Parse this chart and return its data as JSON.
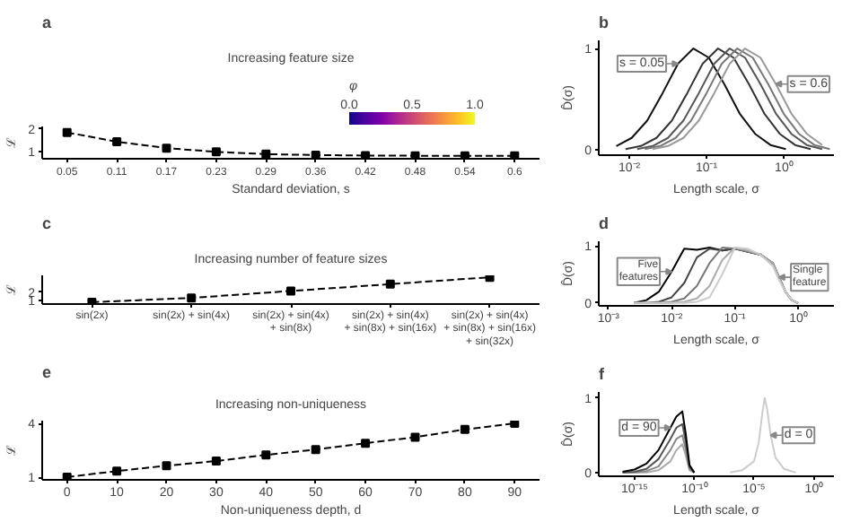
{
  "chart_data": [
    {
      "type": "line",
      "title": "a",
      "annotations": [
        "Increasing feature size"
      ],
      "clabel": "φ",
      "clim": [
        0,
        1
      ],
      "cticks": [
        {
          "value": 0,
          "label": "0.0"
        },
        {
          "value": 0.5,
          "label": "0.5"
        },
        {
          "value": 1,
          "label": "1.0"
        }
      ],
      "categories": [
        "0.05",
        "0.11",
        "0.17",
        "0.23",
        "0.29",
        "0.36",
        "0.42",
        "0.48",
        "0.54",
        "0.6"
      ],
      "xlabel": "Standard deviation, s",
      "ylabel": "ℒ",
      "ylim": [
        0.7,
        2.1
      ],
      "yticks": [
        1,
        2
      ],
      "marker": "square",
      "line_style": "dashed",
      "grid": false,
      "series": [
        {
          "color": "#000000",
          "values": [
            1.84,
            1.44,
            1.16,
            1.0,
            0.9,
            0.86,
            0.84,
            0.83,
            0.83,
            0.83
          ]
        }
      ]
    },
    {
      "type": "line",
      "title": "b",
      "log": "x",
      "xlabel": "Length scale, σ",
      "ylabel": "D̂(σ)",
      "xlim": [
        0.004,
        4.5
      ],
      "xticks": [
        {
          "value": 0.01,
          "label": "10⁻²"
        },
        {
          "value": 0.1,
          "label": "10⁻¹"
        },
        {
          "value": 1,
          "label": "10⁰"
        }
      ],
      "ylim": [
        -0.05,
        1.08
      ],
      "yticks": [
        0,
        1
      ],
      "grid": false,
      "line_style": "solid",
      "annotations": [
        {
          "text": "s = 0.05",
          "x": 0.0427,
          "y": 0.85
        },
        {
          "text": "s = 0.6",
          "x": 0.794,
          "y": 0.65
        }
      ],
      "series": [
        {
          "color": "#111111",
          "x": [
            0.00676,
            0.0107,
            0.017,
            0.0269,
            0.0427,
            0.0676,
            0.107,
            0.17,
            0.269,
            0.427,
            0.676,
            1.07
          ],
          "values": [
            0.04,
            0.12,
            0.29,
            0.56,
            0.85,
            1.0,
            0.91,
            0.65,
            0.36,
            0.16,
            0.05,
            0.01
          ]
        },
        {
          "color": "#333333",
          "x": [
            0.00891,
            0.0141,
            0.0224,
            0.0355,
            0.0562,
            0.0891,
            0.141,
            0.224,
            0.355,
            0.562,
            0.891,
            1.41,
            2.24
          ],
          "values": [
            0.01,
            0.04,
            0.12,
            0.29,
            0.56,
            0.85,
            1.0,
            0.91,
            0.65,
            0.36,
            0.16,
            0.05,
            0.01
          ]
        },
        {
          "color": "#555555",
          "x": [
            0.0126,
            0.02,
            0.0316,
            0.0501,
            0.0794,
            0.126,
            0.2,
            0.316,
            0.501,
            0.794,
            1.26,
            2.0,
            3.16
          ],
          "values": [
            0.01,
            0.04,
            0.12,
            0.29,
            0.56,
            0.85,
            1.0,
            0.91,
            0.65,
            0.36,
            0.16,
            0.05,
            0.01
          ]
        },
        {
          "color": "#777777",
          "x": [
            0.0158,
            0.0251,
            0.0398,
            0.0631,
            0.1,
            0.158,
            0.251,
            0.398,
            0.631,
            1.0,
            1.58,
            2.51,
            3.98
          ],
          "values": [
            0.01,
            0.04,
            0.12,
            0.29,
            0.56,
            0.85,
            1.0,
            0.91,
            0.65,
            0.36,
            0.16,
            0.05,
            0.01
          ]
        },
        {
          "color": "#999999",
          "x": [
            0.02,
            0.0316,
            0.0501,
            0.0794,
            0.126,
            0.2,
            0.316,
            0.501,
            0.794,
            1.26,
            2.0,
            3.16
          ],
          "values": [
            0.01,
            0.04,
            0.12,
            0.29,
            0.56,
            0.85,
            1.0,
            0.91,
            0.65,
            0.36,
            0.16,
            0.05
          ]
        }
      ]
    },
    {
      "type": "line",
      "title": "c",
      "annotations": [
        "Increasing number of feature sizes"
      ],
      "categories": [
        "sin(2x)",
        "sin(2x) + sin(4x)",
        "sin(2x) + sin(4x)\n+ sin(8x)",
        "sin(2x) + sin(4x)\n+ sin(8x) + sin(16x)",
        "sin(2x) + sin(4x)\n+ sin(8x) + sin(16x)\n+ sin(32x)"
      ],
      "ylabel": "ℒ",
      "ylim": [
        0.5,
        4.1
      ],
      "yticks": [
        1,
        2
      ],
      "marker": "square",
      "line_style": "dashed",
      "grid": false,
      "series": [
        {
          "color": "#000000",
          "values": [
            0.73,
            1.27,
            2.14,
            3.0,
            3.86
          ]
        }
      ]
    },
    {
      "type": "line",
      "title": "d",
      "log": "x",
      "xlabel": "Length scale, σ",
      "ylabel": "D̂(σ)",
      "xlim": [
        0.0007,
        3.7
      ],
      "xticks": [
        {
          "value": 0.001,
          "label": "10⁻³"
        },
        {
          "value": 0.01,
          "label": "10⁻²"
        },
        {
          "value": 0.1,
          "label": "10⁻¹"
        },
        {
          "value": 1,
          "label": "10⁰"
        }
      ],
      "ylim": [
        -0.05,
        1.08
      ],
      "yticks": [
        0,
        1
      ],
      "grid": false,
      "line_style": "solid",
      "annotations": [
        {
          "text": "Five features",
          "x": 0.01,
          "y": 0.55
        },
        {
          "text": "Single feature",
          "x": 0.501,
          "y": 0.45
        }
      ],
      "x": [
        0.00251,
        0.00398,
        0.0063,
        0.01,
        0.0158,
        0.0251,
        0.0398,
        0.063,
        0.1,
        0.158,
        0.251,
        0.398,
        0.501,
        0.631,
        0.794,
        1.0
      ],
      "series": [
        {
          "color": "#000000",
          "values": [
            0,
            0.05,
            0.2,
            0.55,
            0.95,
            0.93,
            0.97,
            0.92,
            0.95,
            0.9,
            0.85,
            0.7,
            0.45,
            0.2,
            0.05,
            0
          ]
        },
        {
          "color": "#444444",
          "values": [
            0,
            0,
            0.02,
            0.1,
            0.35,
            0.8,
            0.95,
            0.92,
            0.96,
            0.9,
            0.85,
            0.7,
            0.45,
            0.2,
            0.05,
            0
          ]
        },
        {
          "color": "#777777",
          "values": [
            0,
            0,
            0,
            0.02,
            0.08,
            0.3,
            0.7,
            0.97,
            0.95,
            0.9,
            0.85,
            0.7,
            0.45,
            0.2,
            0.05,
            0
          ]
        },
        {
          "color": "#aaaaaa",
          "values": [
            0,
            0,
            0,
            0,
            0.02,
            0.08,
            0.3,
            0.75,
            0.97,
            0.92,
            0.85,
            0.7,
            0.45,
            0.2,
            0.05,
            0
          ]
        },
        {
          "color": "#cccccc",
          "values": [
            0,
            0,
            0,
            0,
            0,
            0.02,
            0.1,
            0.5,
            0.97,
            0.95,
            0.85,
            0.65,
            0.4,
            0.2,
            0.05,
            0
          ]
        }
      ]
    },
    {
      "type": "line",
      "title": "e",
      "annotations": [
        "Increasing non-uniqueness"
      ],
      "xlabel": "Non-uniqueness depth, d",
      "ylabel": "ℒ",
      "x": [
        0,
        10,
        20,
        30,
        40,
        50,
        60,
        70,
        80,
        90
      ],
      "xlim": [
        -5,
        95
      ],
      "xticks": [
        0,
        10,
        20,
        30,
        40,
        50,
        60,
        70,
        80,
        90
      ],
      "ylim": [
        0.85,
        4.15
      ],
      "yticks": [
        1,
        4
      ],
      "marker": "square",
      "line_style": "dashed",
      "grid": false,
      "series": [
        {
          "color": "#000000",
          "values": [
            1.0,
            1.34,
            1.64,
            1.9,
            2.24,
            2.54,
            2.89,
            3.23,
            3.66,
            4.0
          ]
        }
      ]
    },
    {
      "type": "line",
      "title": "f",
      "log": "x",
      "xlabel": "Length scale, σ",
      "ylabel": "D̂(σ)",
      "xlim": [
        1e-18,
        50
      ],
      "xticks": [
        {
          "value": 1e-15,
          "label": "10⁻¹⁵"
        },
        {
          "value": 1e-10,
          "label": "10⁻¹⁰"
        },
        {
          "value": 1e-05,
          "label": "10⁻⁵"
        },
        {
          "value": 1,
          "label": "10⁰"
        }
      ],
      "ylim": [
        -0.05,
        1.08
      ],
      "yticks": [
        0,
        1
      ],
      "grid": false,
      "line_style": "solid",
      "annotations": [
        {
          "text": "d = 90",
          "x": 1e-12,
          "y": 0.6
        },
        {
          "text": "d = 0",
          "x": 0.000251,
          "y": 0.5
        }
      ],
      "x": [
        1e-16,
        1e-15,
        1e-14,
        1e-13,
        1e-12,
        3.16e-12,
        1e-11,
        2e-11,
        3.98e-11,
        1e-10
      ],
      "series": [
        {
          "color": "#aaaaaa",
          "values": [
            0,
            0,
            0,
            0.03,
            0.15,
            0.3,
            0.38,
            0.22,
            0.03,
            0
          ]
        },
        {
          "color": "#888888",
          "values": [
            0,
            0,
            0.02,
            0.08,
            0.3,
            0.45,
            0.5,
            0.3,
            0.05,
            0
          ]
        },
        {
          "color": "#555555",
          "values": [
            0,
            0.01,
            0.05,
            0.18,
            0.45,
            0.6,
            0.65,
            0.4,
            0.08,
            0
          ]
        },
        {
          "color": "#000000",
          "values": [
            0.01,
            0.04,
            0.12,
            0.3,
            0.6,
            0.75,
            0.82,
            0.5,
            0.1,
            0
          ]
        },
        {
          "color": "#cccccc",
          "x": [
            1e-07,
            1e-06,
            1e-05,
            2.51e-05,
            5.01e-05,
            7.94e-05,
            0.000126,
            0.000251,
            0.000631,
            0.00316,
            0.0316
          ],
          "values": [
            0,
            0.03,
            0.15,
            0.4,
            0.8,
            1.0,
            0.85,
            0.5,
            0.2,
            0.05,
            0
          ]
        }
      ]
    }
  ]
}
